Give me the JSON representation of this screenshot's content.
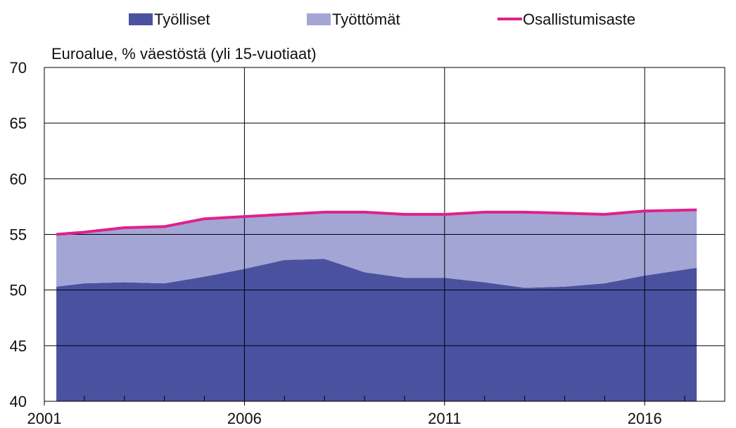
{
  "chart_data": {
    "type": "area",
    "title": "",
    "subtitle": "Euroalue, % väestöstä (yli 15-vuotiaat)",
    "xlabel": "",
    "ylabel": "",
    "ylim": [
      40,
      70
    ],
    "yticks": [
      40,
      45,
      50,
      55,
      60,
      65,
      70
    ],
    "xlim": [
      2001,
      2018
    ],
    "xticks": [
      2001,
      2006,
      2011,
      2016
    ],
    "minor_xticks": [
      2002,
      2003,
      2004,
      2005,
      2007,
      2008,
      2009,
      2010,
      2012,
      2013,
      2014,
      2015,
      2017
    ],
    "grid": true,
    "legend_position": "top",
    "x": [
      2001.3,
      2002,
      2003,
      2004,
      2005,
      2006,
      2007,
      2008,
      2009,
      2010,
      2011,
      2012,
      2013,
      2014,
      2015,
      2016,
      2017.3
    ],
    "series": [
      {
        "name": "Työlliset",
        "kind": "stacked-area",
        "color": "#4a52a0",
        "values": [
          50.3,
          50.6,
          50.7,
          50.6,
          51.2,
          51.9,
          52.7,
          52.8,
          51.6,
          51.1,
          51.1,
          50.7,
          50.2,
          50.3,
          50.6,
          51.3,
          52.0
        ]
      },
      {
        "name": "Työttömät",
        "kind": "stacked-area",
        "color": "#a3a6d5",
        "values": [
          4.7,
          4.6,
          4.9,
          5.1,
          5.2,
          4.7,
          4.1,
          4.2,
          5.4,
          5.7,
          5.7,
          6.3,
          6.8,
          6.6,
          6.2,
          5.8,
          5.2
        ]
      },
      {
        "name": "Osallistumisaste",
        "kind": "line",
        "color": "#e0218a",
        "values": [
          55.0,
          55.2,
          55.6,
          55.7,
          56.4,
          56.6,
          56.8,
          57.0,
          57.0,
          56.8,
          56.8,
          57.0,
          57.0,
          56.9,
          56.8,
          57.1,
          57.2
        ]
      }
    ]
  }
}
